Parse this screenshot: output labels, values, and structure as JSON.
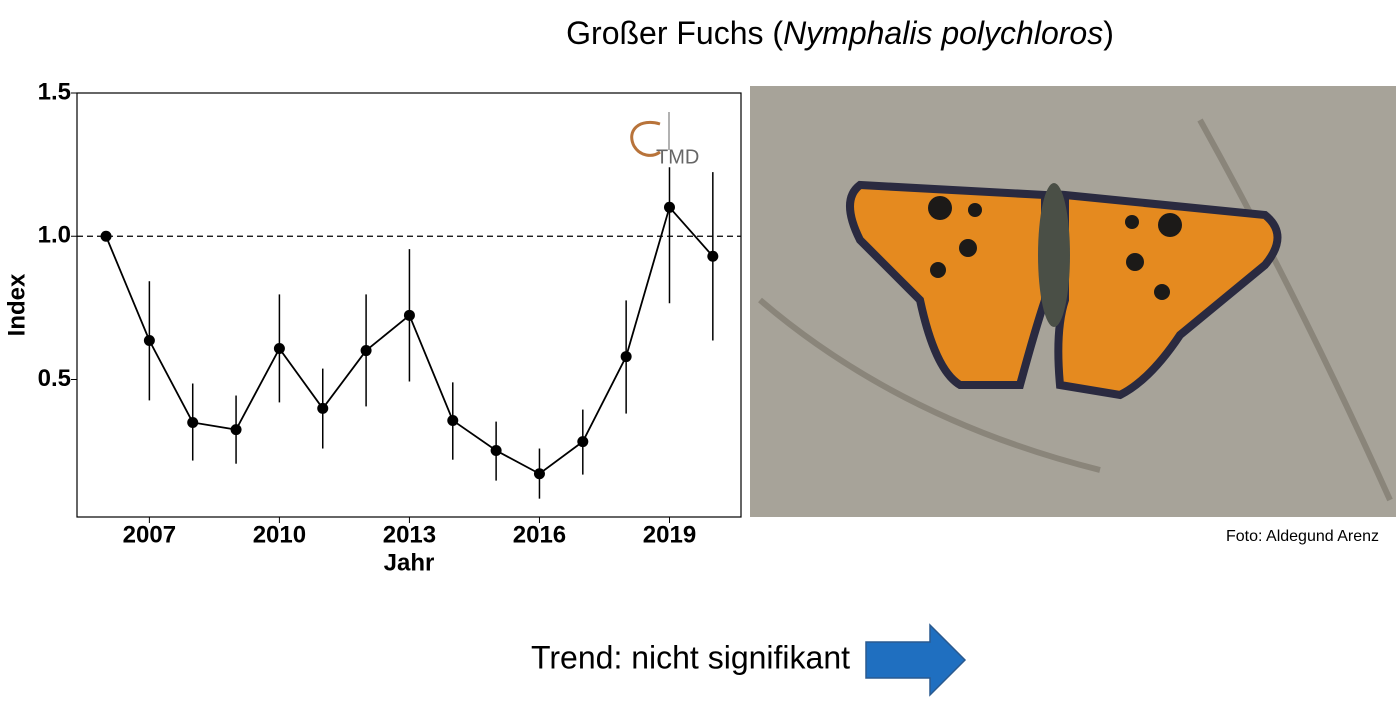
{
  "chart_data": {
    "type": "line",
    "title_parts": [
      "Großer Fuchs (",
      "Nymphalis polychloros",
      ")"
    ],
    "xlabel": "Jahr",
    "ylabel": "Index",
    "x": [
      2006,
      2007,
      2008,
      2009,
      2010,
      2011,
      2012,
      2013,
      2014,
      2015,
      2016,
      2017,
      2018,
      2019,
      2020
    ],
    "series": [
      {
        "name": "Index",
        "color": "#000000",
        "values": [
          1.0,
          0.636,
          0.35,
          0.325,
          0.608,
          0.399,
          0.601,
          0.724,
          0.357,
          0.252,
          0.171,
          0.283,
          0.58,
          1.101,
          0.93
        ],
        "lower": [
          null,
          0.427,
          0.217,
          0.206,
          0.42,
          0.259,
          0.406,
          0.493,
          0.22,
          0.147,
          0.084,
          0.168,
          0.381,
          0.766,
          0.636
        ],
        "upper": [
          null,
          0.843,
          0.486,
          0.444,
          0.797,
          0.538,
          0.797,
          0.955,
          0.49,
          0.353,
          0.259,
          0.395,
          0.776,
          1.241,
          1.224
        ]
      }
    ],
    "xlim": [
      2005.33,
      2020.65
    ],
    "ylim": [
      0.02,
      1.5
    ],
    "xticks": [
      2007,
      2010,
      2013,
      2016,
      2019
    ],
    "yticks": [
      0.5,
      {
        "value": 1.0,
        "label": "1.0"
      },
      {
        "value": 1.5,
        "label": "1.5"
      }
    ],
    "reference_line": 1,
    "logo": "TMD",
    "photo_credit": "Foto: Aldegund Arenz",
    "trend": "Trend: nicht signifikant"
  }
}
